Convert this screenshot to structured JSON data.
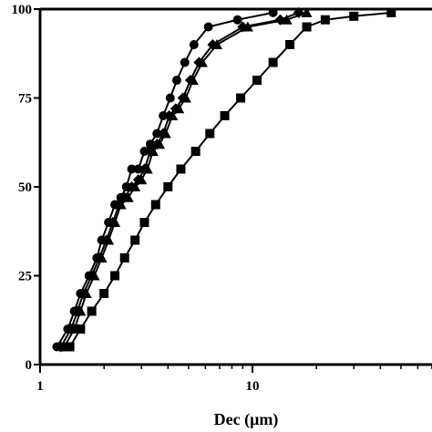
{
  "chart_data": {
    "type": "line",
    "title": "",
    "xlabel": "Dec (μm)",
    "ylabel": "",
    "x_scale": "log",
    "xlim": [
      1,
      70
    ],
    "ylim": [
      0,
      100
    ],
    "x_ticks": [
      1,
      10
    ],
    "y_ticks": [
      0,
      25,
      50,
      75,
      100
    ],
    "grid": false,
    "legend": "none",
    "series": [
      {
        "marker": "circle",
        "x": [
          1.2,
          1.35,
          1.45,
          1.55,
          1.7,
          1.85,
          1.95,
          2.1,
          2.25,
          2.4,
          2.55,
          2.7,
          2.9,
          3.1,
          3.3,
          3.55,
          3.8,
          4.1,
          4.4,
          4.8,
          5.3,
          6.2,
          8.5,
          12.5
        ],
        "y": [
          5,
          10,
          15,
          20,
          25,
          30,
          35,
          40,
          45,
          47,
          50,
          55,
          55,
          60,
          62,
          65,
          70,
          75,
          80,
          85,
          90,
          95,
          97,
          99
        ]
      },
      {
        "marker": "diamond",
        "x": [
          1.25,
          1.4,
          1.5,
          1.6,
          1.75,
          1.9,
          2.05,
          2.2,
          2.35,
          2.5,
          2.7,
          2.9,
          3.1,
          3.3,
          3.55,
          3.8,
          4.05,
          4.35,
          4.7,
          5.1,
          5.6,
          6.5,
          9.0,
          13.5,
          16.5
        ],
        "y": [
          5,
          10,
          15,
          20,
          25,
          30,
          35,
          40,
          45,
          47,
          50,
          52,
          55,
          60,
          62,
          65,
          70,
          72,
          75,
          80,
          85,
          90,
          95,
          97,
          99
        ]
      },
      {
        "marker": "triangle",
        "x": [
          1.3,
          1.45,
          1.55,
          1.65,
          1.8,
          1.95,
          2.1,
          2.25,
          2.4,
          2.6,
          2.8,
          3.0,
          3.2,
          3.4,
          3.65,
          3.9,
          4.2,
          4.5,
          4.85,
          5.25,
          5.8,
          6.8,
          9.5,
          14.5,
          18.0
        ],
        "y": [
          5,
          10,
          15,
          20,
          25,
          30,
          35,
          40,
          45,
          47,
          50,
          52,
          55,
          60,
          62,
          65,
          70,
          72,
          75,
          80,
          85,
          90,
          95,
          97,
          99
        ]
      },
      {
        "marker": "square",
        "x": [
          1.38,
          1.55,
          1.75,
          2.0,
          2.25,
          2.5,
          2.8,
          3.1,
          3.5,
          4.0,
          4.6,
          5.4,
          6.3,
          7.4,
          8.8,
          10.5,
          12.5,
          15.0,
          18.0,
          22.0,
          30.0,
          45.0
        ],
        "y": [
          5,
          10,
          15,
          20,
          25,
          30,
          35,
          40,
          45,
          50,
          55,
          60,
          65,
          70,
          75,
          80,
          85,
          90,
          95,
          97,
          98,
          99
        ]
      }
    ]
  }
}
